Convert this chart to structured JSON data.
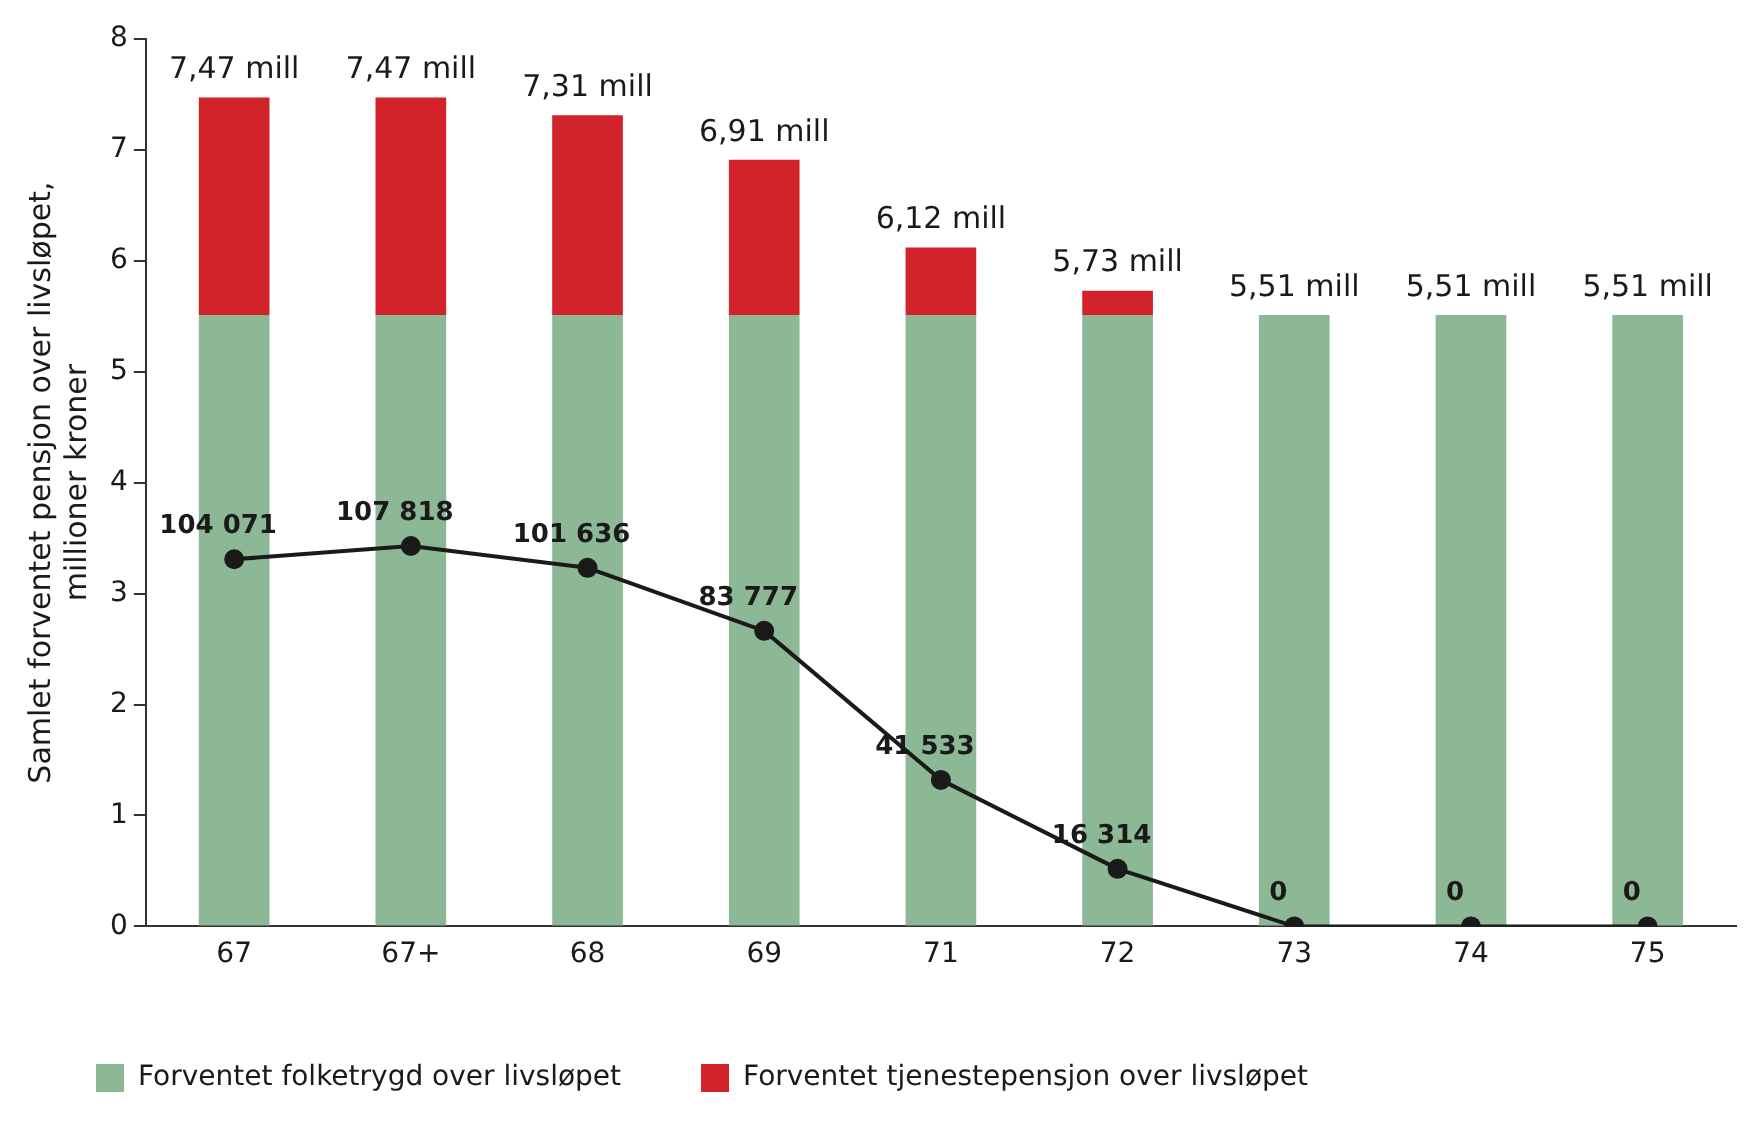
{
  "chart_data": {
    "type": "bar",
    "stacked": true,
    "categories": [
      "67",
      "67+",
      "68",
      "69",
      "71",
      "72",
      "73",
      "74",
      "75"
    ],
    "ylabel": "Samlet forventet pensjon over livsløpet, millioner kroner",
    "series": [
      {
        "name": "Forventet folketrygd over livsløpet",
        "color": "#8db896",
        "values": [
          5.51,
          5.51,
          5.51,
          5.51,
          5.51,
          5.51,
          5.51,
          5.51,
          5.51
        ]
      },
      {
        "name": "Forventet tjenestepensjon over livsløpet",
        "color": "#d2232a",
        "values": [
          1.96,
          1.96,
          1.8,
          1.4,
          0.61,
          0.22,
          0,
          0,
          0
        ]
      },
      {
        "type": "line",
        "axis": "y2",
        "color": "#1a1a1a",
        "marker": "circle",
        "values": [
          104071,
          107818,
          101636,
          83777,
          41533,
          16314,
          0,
          0,
          0
        ],
        "value_labels": [
          "104 071",
          "107 818",
          "101 636",
          "83 777",
          "41 533",
          "16 314",
          "0",
          "0",
          "0"
        ]
      }
    ],
    "totals": [
      "7,47 mill",
      "7,47 mill",
      "7,31 mill",
      "6,91 mill",
      "6,12 mill",
      "5,73 mill",
      "5,51 mill",
      "5,51 mill",
      "5,51 mill"
    ],
    "ylim": [
      0,
      8
    ],
    "yticks": [
      0,
      1,
      2,
      3,
      4,
      5,
      6,
      7,
      8
    ],
    "y2lim": [
      0,
      251600
    ],
    "legend": "bottom",
    "grid": false
  }
}
